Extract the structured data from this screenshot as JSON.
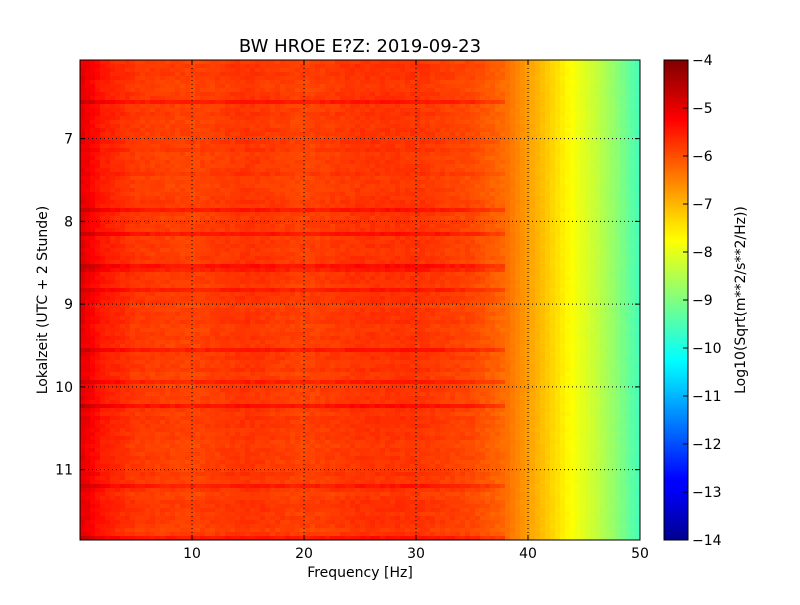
{
  "chart_data": {
    "type": "heatmap",
    "title": "BW HROE E?Z: 2019-09-23",
    "xlabel": "Frequency [Hz]",
    "ylabel": "Lokalzeit (UTC + 2 Stunde)",
    "xlim": [
      0,
      50
    ],
    "ylim": [
      6.05,
      11.85
    ],
    "y_inverted": true,
    "grid": true,
    "grid_style": "dotted",
    "colormap": "jet",
    "x_ticks": [
      10,
      20,
      30,
      40,
      50
    ],
    "x_tick_labels": [
      "10",
      "20",
      "30",
      "40",
      "50"
    ],
    "y_ticks": [
      7,
      8,
      9,
      10,
      11
    ],
    "y_tick_labels": [
      "7",
      "8",
      "9",
      "10",
      "11"
    ],
    "colorbar": {
      "label": "Log10(Sqrt(m**2/s**2/Hz))",
      "range": [
        -14,
        -4
      ],
      "ticks": [
        -4,
        -5,
        -6,
        -7,
        -8,
        -9,
        -10,
        -11,
        -12,
        -13,
        -14
      ],
      "tick_labels": [
        "−4",
        "−5",
        "−6",
        "−7",
        "−8",
        "−9",
        "−10",
        "−11",
        "−12",
        "−13",
        "−14"
      ]
    },
    "spectral_profile": {
      "frequency_hz": [
        0,
        0.5,
        2,
        5,
        10,
        15,
        20,
        25,
        30,
        35,
        38,
        40,
        42,
        44,
        46,
        48,
        50
      ],
      "log10_amplitude": [
        -5.0,
        -5.1,
        -5.5,
        -5.8,
        -5.9,
        -5.75,
        -5.9,
        -5.75,
        -5.75,
        -5.95,
        -6.3,
        -6.8,
        -7.3,
        -7.8,
        -8.3,
        -8.9,
        -9.6
      ]
    }
  }
}
